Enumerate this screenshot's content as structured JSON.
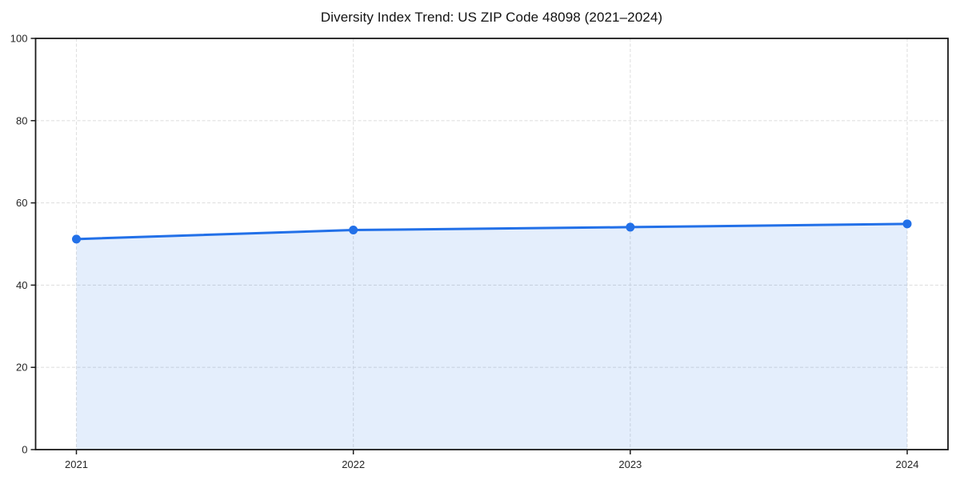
{
  "figure": {
    "background": "#ffffff"
  },
  "chart_data": {
    "type": "area",
    "title": "Diversity Index Trend: US ZIP Code 48098 (2021–2024)",
    "categories": [
      "2021",
      "2022",
      "2023",
      "2024"
    ],
    "series": [
      {
        "name": "Diversity Index",
        "values": [
          51.2,
          53.4,
          54.1,
          54.9
        ]
      }
    ],
    "xlabel": "",
    "ylabel": "",
    "ylim": [
      0,
      100
    ],
    "yticks": [
      0,
      20,
      40,
      60,
      80,
      100
    ],
    "grid": "dashed",
    "legend": "none",
    "marker": "circle",
    "colors": {
      "line": "#2270e8",
      "marker": "#2270e8",
      "fill": "#2270e8",
      "fill_opacity": 0.12,
      "grid": "#e0e0e0",
      "spine": "#1a1a1a",
      "tick_text": "#262626",
      "title_text": "#111111"
    }
  }
}
